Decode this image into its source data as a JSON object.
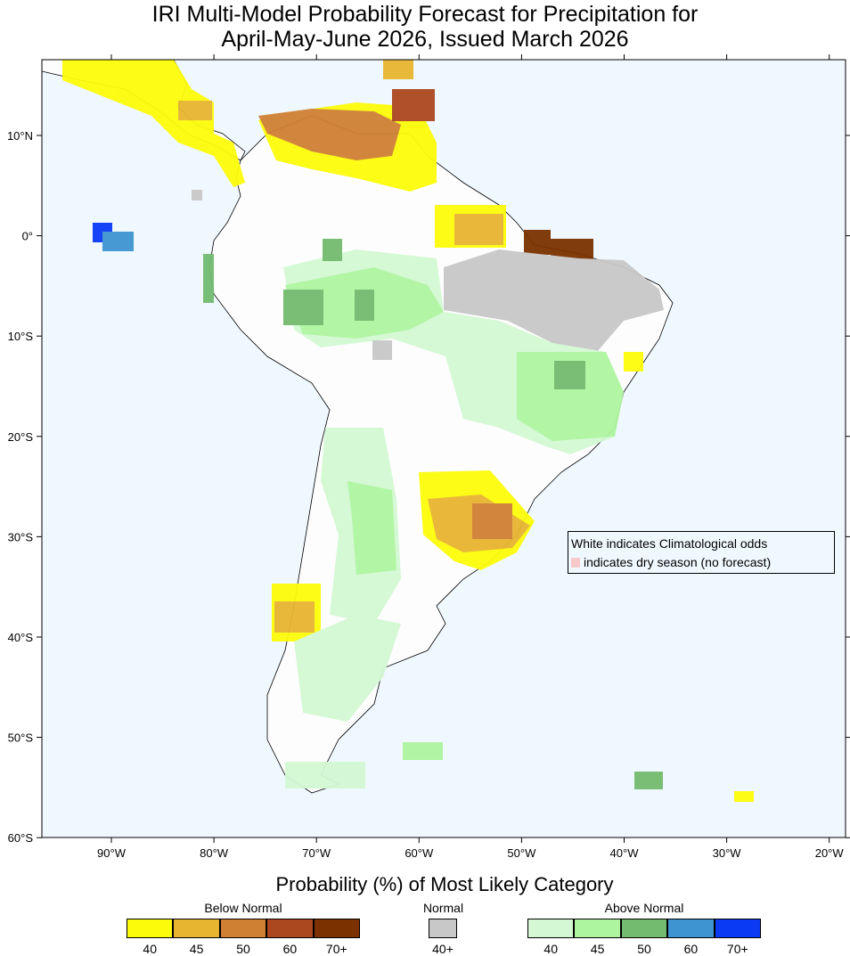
{
  "title_line1": "IRI Multi-Model Probability Forecast for Precipitation for",
  "title_line2": "April-May-June 2026, Issued March 2026",
  "lat_labels": [
    "10°N",
    "0°",
    "10°S",
    "20°S",
    "30°S",
    "40°S",
    "50°S",
    "60°S"
  ],
  "lon_labels": [
    "90°W",
    "80°W",
    "70°W",
    "60°W",
    "50°W",
    "40°W",
    "30°W",
    "20°W"
  ],
  "note": {
    "line1": "White indicates Climatological odds",
    "line2": "indicates dry season (no forecast)",
    "dry_color": "#f7c9c9"
  },
  "legend": {
    "title": "Probability (%) of Most Likely Category",
    "below": {
      "label": "Below Normal",
      "bins": [
        "40",
        "45",
        "50",
        "60",
        "70+"
      ],
      "colors": [
        "#fcfc0a",
        "#e8b531",
        "#d08033",
        "#ac481f",
        "#7b3200"
      ]
    },
    "normal": {
      "label": "Normal",
      "bins": [
        "40+"
      ],
      "colors": [
        "#c8c8c8"
      ]
    },
    "above": {
      "label": "Above Normal",
      "bins": [
        "40",
        "45",
        "50",
        "60",
        "70+"
      ],
      "colors": [
        "#d3f8d3",
        "#aef5a0",
        "#73bb6f",
        "#3e94d1",
        "#0b3af5"
      ]
    }
  },
  "ocean_color": "#f0f8ff"
}
